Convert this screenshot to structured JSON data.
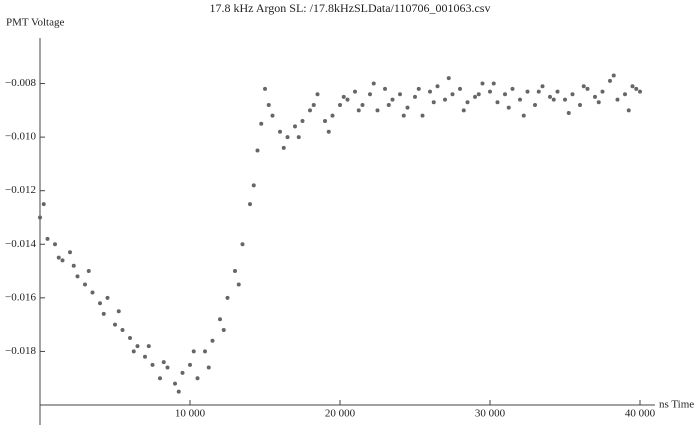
{
  "chart_data": {
    "type": "scatter",
    "title": "17.8 kHz Argon SL:  /17.8kHzSLData/110706_001063.csv",
    "y_label": "PMT Voltage",
    "x_label": "ns Time",
    "color": "#666666",
    "xlim": [
      0,
      41000
    ],
    "ylim": [
      -0.02,
      -0.0063
    ],
    "xticks": [
      {
        "value": 10000,
        "label": "10 000"
      },
      {
        "value": 20000,
        "label": "20 000"
      },
      {
        "value": 30000,
        "label": "30 000"
      },
      {
        "value": 40000,
        "label": "40 000"
      }
    ],
    "yticks": [
      {
        "value": -0.018,
        "label": "−0.018"
      },
      {
        "value": -0.016,
        "label": "−0.016"
      },
      {
        "value": -0.014,
        "label": "−0.014"
      },
      {
        "value": -0.012,
        "label": "−0.012"
      },
      {
        "value": -0.01,
        "label": "−0.010"
      },
      {
        "value": -0.008,
        "label": "−0.008"
      }
    ],
    "x": [
      0,
      500,
      1000,
      1500,
      2000,
      2500,
      3000,
      3500,
      4000,
      4500,
      5000,
      5500,
      6000,
      6500,
      7000,
      7500,
      8000,
      8500,
      9000,
      9500,
      10000,
      10500,
      11000,
      11500,
      12000,
      12500,
      13000,
      13500,
      14000,
      14500,
      15000,
      15500,
      16000,
      16500,
      17000,
      17500,
      18000,
      18500,
      19000,
      19500,
      20000,
      20500,
      21000,
      21500,
      22000,
      22500,
      23000,
      23500,
      24000,
      24500,
      25000,
      25500,
      26000,
      26500,
      27000,
      27500,
      28000,
      28500,
      29000,
      29500,
      30000,
      30500,
      31000,
      31500,
      32000,
      32500,
      33000,
      33500,
      34000,
      34500,
      35000,
      35500,
      36000,
      36500,
      37000,
      37500,
      38000,
      38500,
      39000,
      39500,
      40000,
      250,
      1250,
      2250,
      3250,
      4250,
      5250,
      6250,
      7250,
      8250,
      9250,
      10250,
      11250,
      12250,
      13250,
      14250,
      14750,
      15250,
      16250,
      17250,
      18250,
      19250,
      20250,
      21250,
      22250,
      23250,
      24250,
      25250,
      26250,
      27250,
      28250,
      29250,
      30250,
      31250,
      32250,
      33250,
      34250,
      35250,
      36250,
      37250,
      38250,
      39250,
      39750
    ],
    "values": [
      -0.013,
      -0.0138,
      -0.014,
      -0.0146,
      -0.0143,
      -0.0152,
      -0.0155,
      -0.0158,
      -0.0162,
      -0.016,
      -0.017,
      -0.0172,
      -0.0175,
      -0.0178,
      -0.0182,
      -0.0185,
      -0.019,
      -0.0186,
      -0.0192,
      -0.0188,
      -0.0185,
      -0.019,
      -0.018,
      -0.0176,
      -0.0168,
      -0.016,
      -0.015,
      -0.014,
      -0.0125,
      -0.0105,
      -0.0082,
      -0.0092,
      -0.0098,
      -0.01,
      -0.0096,
      -0.0094,
      -0.009,
      -0.0084,
      -0.0094,
      -0.0092,
      -0.0088,
      -0.0086,
      -0.0083,
      -0.0088,
      -0.0084,
      -0.009,
      -0.0082,
      -0.0086,
      -0.0084,
      -0.0089,
      -0.0085,
      -0.0092,
      -0.0083,
      -0.0081,
      -0.0086,
      -0.0084,
      -0.0082,
      -0.0087,
      -0.0085,
      -0.008,
      -0.0083,
      -0.0087,
      -0.0084,
      -0.0082,
      -0.0086,
      -0.0083,
      -0.0088,
      -0.0081,
      -0.0085,
      -0.0083,
      -0.0086,
      -0.0084,
      -0.0088,
      -0.0082,
      -0.0085,
      -0.0083,
      -0.0079,
      -0.0086,
      -0.0084,
      -0.0081,
      -0.0083,
      -0.0125,
      -0.0145,
      -0.0148,
      -0.015,
      -0.0166,
      -0.0165,
      -0.018,
      -0.0178,
      -0.0184,
      -0.0195,
      -0.018,
      -0.0186,
      -0.0172,
      -0.0155,
      -0.0118,
      -0.0095,
      -0.0088,
      -0.0104,
      -0.01,
      -0.0088,
      -0.0098,
      -0.0085,
      -0.009,
      -0.008,
      -0.0088,
      -0.0092,
      -0.0082,
      -0.0087,
      -0.0078,
      -0.009,
      -0.0084,
      -0.008,
      -0.0089,
      -0.0092,
      -0.0083,
      -0.0086,
      -0.0091,
      -0.0081,
      -0.0087,
      -0.0077,
      -0.009,
      -0.0082
    ]
  }
}
